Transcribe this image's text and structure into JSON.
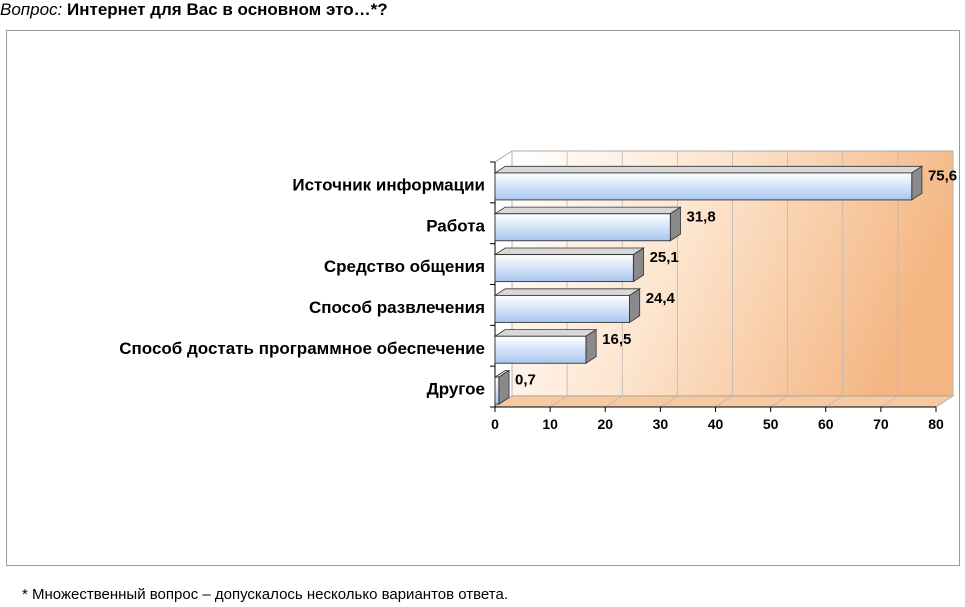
{
  "question": {
    "prefix": "Вопрос:",
    "text": "Интернет для Вас в основном это…*?"
  },
  "footnote": "* Множественный вопрос – допускалось несколько вариантов ответа.",
  "colors": {
    "bar_fill_light": "#ffffff",
    "bar_fill_dark": "#a9c6ef",
    "bar_top": "#d8d8d8",
    "bar_side": "#8a8a8a",
    "back_wall_left": "#ffffff",
    "back_wall_right": "#f4b784",
    "floor": "#f6c9a0",
    "gridline": "#b8b8b8"
  },
  "chart_data": {
    "type": "bar",
    "orientation": "horizontal",
    "style": "3d",
    "categories": [
      "Источник информации",
      "Работа",
      "Средство общения",
      "Способ развлечения",
      "Способ достать программное обеспечение",
      "Другое"
    ],
    "values": [
      75.6,
      31.8,
      25.1,
      24.4,
      16.5,
      0.7
    ],
    "data_labels": [
      "75,6",
      "31,8",
      "25,1",
      "24,4",
      "16,5",
      "0,7"
    ],
    "x_ticks": [
      0,
      10,
      20,
      30,
      40,
      50,
      60,
      70,
      80
    ],
    "xlim": [
      0,
      80
    ],
    "grid": true,
    "legend": "none"
  }
}
